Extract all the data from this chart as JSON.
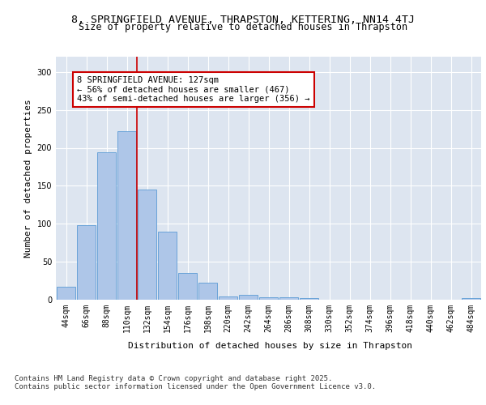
{
  "title_line1": "8, SPRINGFIELD AVENUE, THRAPSTON, KETTERING, NN14 4TJ",
  "title_line2": "Size of property relative to detached houses in Thrapston",
  "xlabel": "Distribution of detached houses by size in Thrapston",
  "ylabel": "Number of detached properties",
  "categories": [
    "44sqm",
    "66sqm",
    "88sqm",
    "110sqm",
    "132sqm",
    "154sqm",
    "176sqm",
    "198sqm",
    "220sqm",
    "242sqm",
    "264sqm",
    "286sqm",
    "308sqm",
    "330sqm",
    "352sqm",
    "374sqm",
    "396sqm",
    "418sqm",
    "440sqm",
    "462sqm",
    "484sqm"
  ],
  "values": [
    17,
    98,
    194,
    222,
    145,
    90,
    35,
    22,
    4,
    6,
    3,
    3,
    2,
    0,
    0,
    0,
    0,
    0,
    0,
    0,
    2
  ],
  "bar_color": "#aec6e8",
  "bar_edge_color": "#5b9bd5",
  "vline_color": "#cc0000",
  "annotation_box_text": "8 SPRINGFIELD AVENUE: 127sqm\n← 56% of detached houses are smaller (467)\n43% of semi-detached houses are larger (356) →",
  "annotation_box_color": "#cc0000",
  "annotation_box_bg": "#ffffff",
  "ylim": [
    0,
    320
  ],
  "yticks": [
    0,
    50,
    100,
    150,
    200,
    250,
    300
  ],
  "background_color": "#dde5f0",
  "grid_color": "#ffffff",
  "footer_text": "Contains HM Land Registry data © Crown copyright and database right 2025.\nContains public sector information licensed under the Open Government Licence v3.0.",
  "title_fontsize": 9.5,
  "subtitle_fontsize": 8.5,
  "axis_label_fontsize": 8,
  "tick_fontsize": 7,
  "annotation_fontsize": 7.5,
  "footer_fontsize": 6.5
}
